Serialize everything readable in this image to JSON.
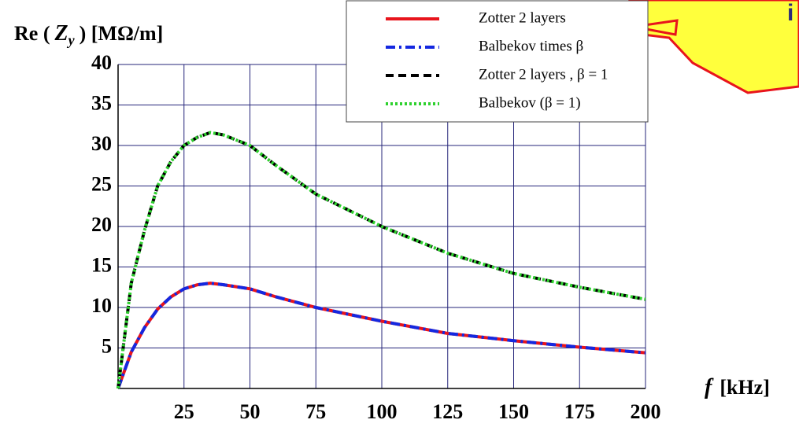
{
  "chart_data": {
    "type": "line",
    "ylabel": [
      "Re (",
      "Z",
      "y",
      ") [MΩ/m]"
    ],
    "xlabel": [
      "f",
      "[kHz]"
    ],
    "callout_text": "i",
    "x": [
      0,
      5,
      10,
      15,
      20,
      25,
      30,
      35,
      40,
      50,
      60,
      75,
      100,
      125,
      150,
      175,
      200
    ],
    "series": [
      {
        "name": "Zotter 2 layers",
        "color": "#e8141c",
        "dash": "solid",
        "values": [
          0,
          4.5,
          7.5,
          9.8,
          11.3,
          12.3,
          12.8,
          13,
          12.8,
          12.3,
          11.3,
          10,
          8.3,
          6.8,
          5.9,
          5.1,
          4.4
        ]
      },
      {
        "name": "Balbekov times β",
        "color": "#1428e0",
        "dash": "dashdot",
        "values": [
          0,
          4.5,
          7.5,
          9.8,
          11.3,
          12.3,
          12.8,
          13,
          12.8,
          12.3,
          11.3,
          10,
          8.3,
          6.8,
          5.9,
          5.1,
          4.4
        ]
      },
      {
        "name": "Zotter 2 layers , β = 1",
        "color": "#000000",
        "dash": "dashed",
        "values": [
          0,
          13,
          19.5,
          25,
          28,
          30,
          31,
          31.6,
          31.3,
          30,
          27.5,
          24,
          20,
          16.7,
          14.2,
          12.5,
          11
        ]
      },
      {
        "name": "Balbekov (β = 1)",
        "color": "#2ed12e",
        "dash": "dotted",
        "values": [
          0,
          13,
          19.5,
          25,
          28,
          30,
          31,
          31.6,
          31.3,
          30,
          27.5,
          24,
          20,
          16.7,
          14.2,
          12.5,
          11
        ]
      }
    ],
    "xlim": [
      0,
      200
    ],
    "xticks": [
      25,
      50,
      75,
      100,
      125,
      150,
      175,
      200
    ],
    "ylim": [
      0,
      40
    ],
    "yticks": [
      5,
      10,
      15,
      20,
      25,
      30,
      35,
      40
    ],
    "grid": true,
    "grid_color": "#25257a"
  }
}
